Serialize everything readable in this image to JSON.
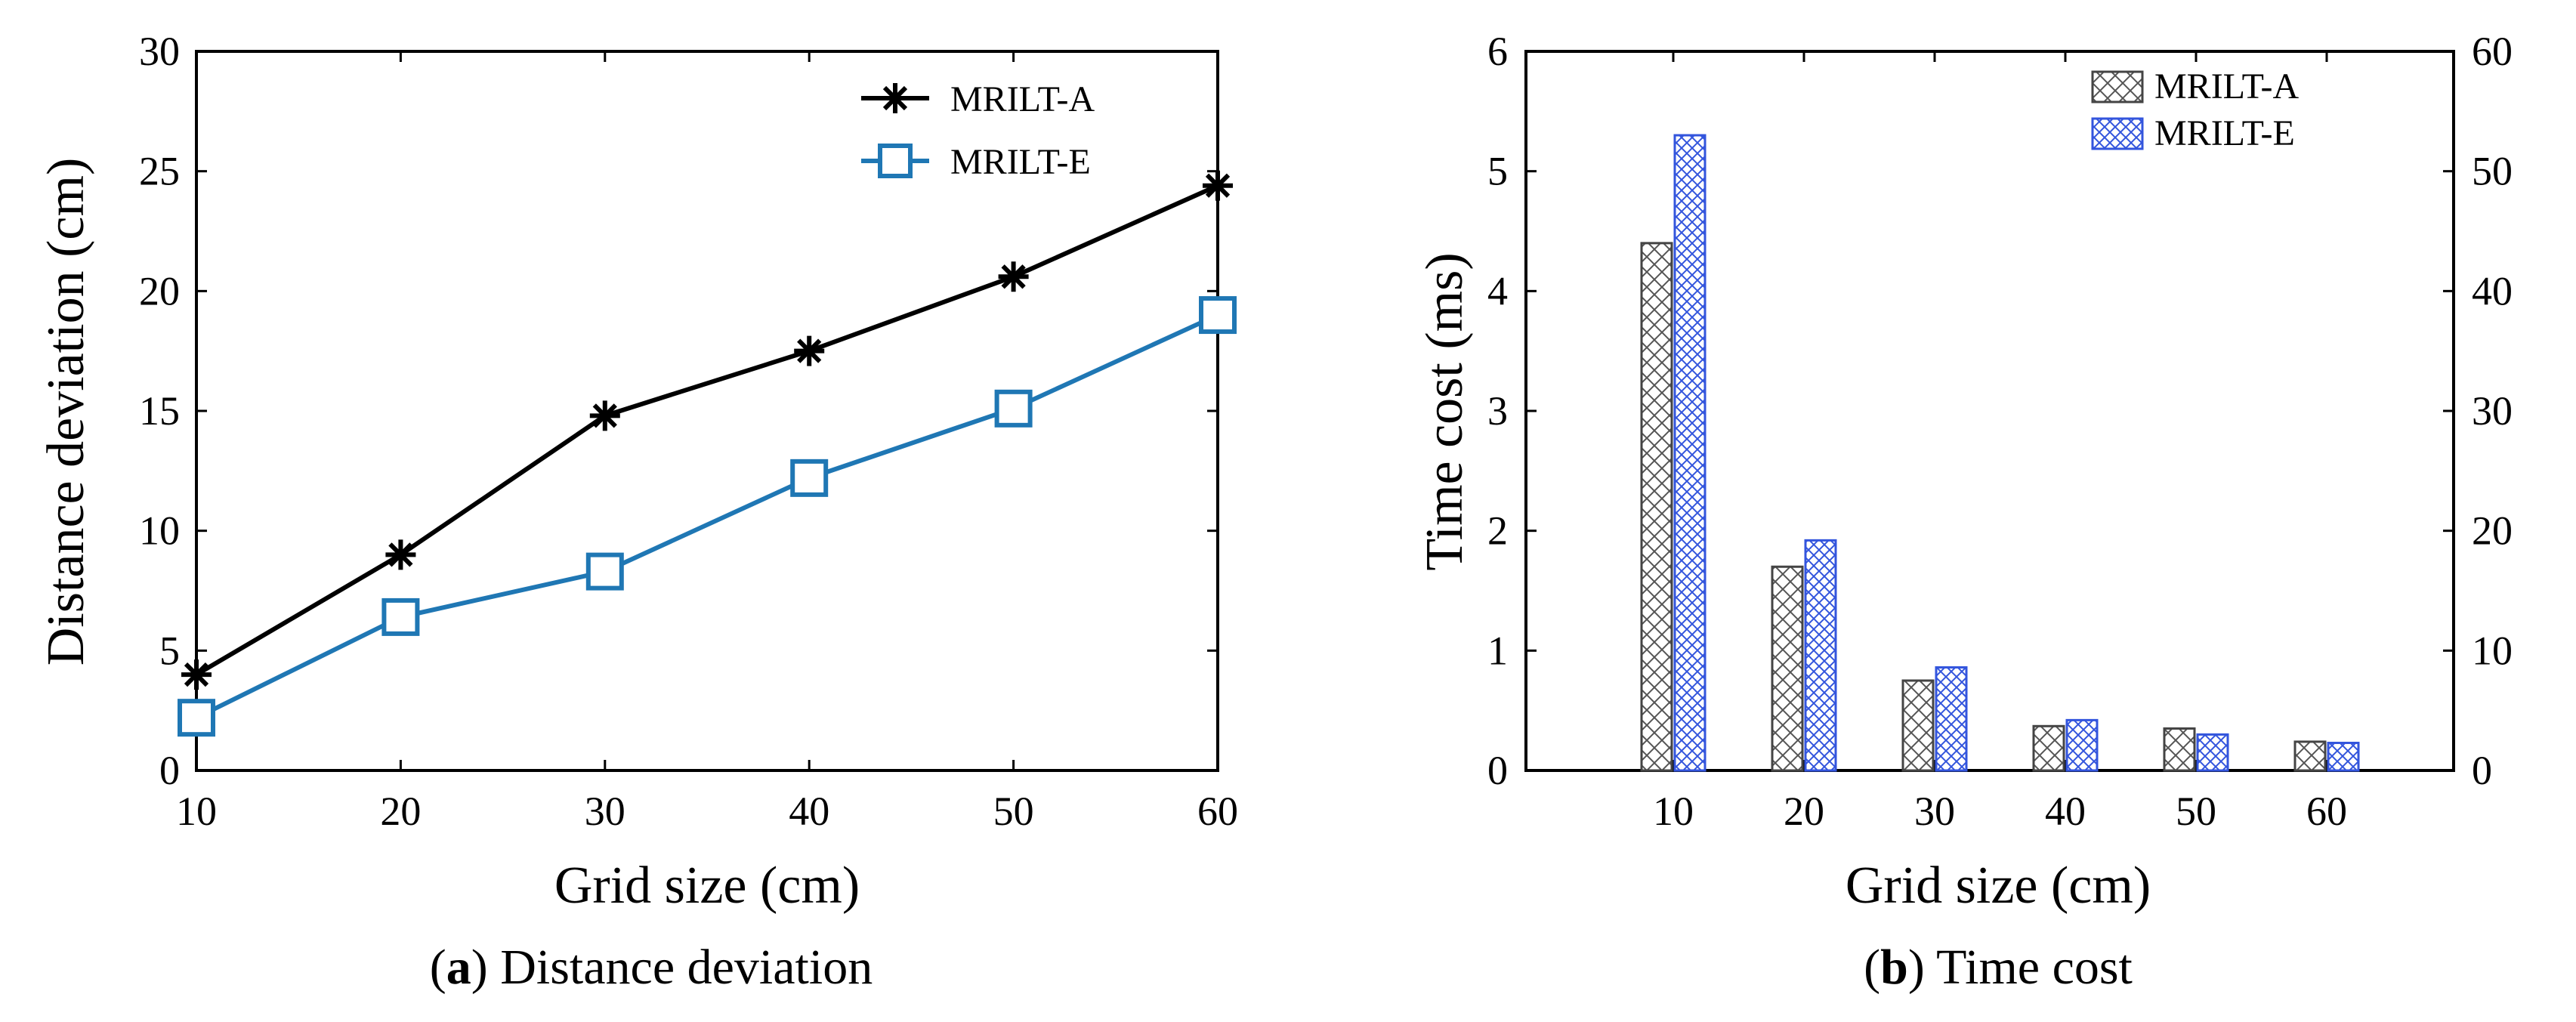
{
  "chart_data": [
    {
      "type": "line",
      "xlabel": "Grid size (cm)",
      "ylabel": "Distance deviation (cm)",
      "caption_letter": "a",
      "caption_text": "Distance deviation",
      "x": [
        10,
        20,
        30,
        40,
        50,
        60
      ],
      "xlim": [
        10,
        60
      ],
      "ylim": [
        0,
        30
      ],
      "xticks": [
        "10",
        "20",
        "30",
        "40",
        "50",
        "60"
      ],
      "yticks": [
        "0",
        "5",
        "10",
        "15",
        "20",
        "25",
        "30"
      ],
      "grid": false,
      "legend": "top-right",
      "series": [
        {
          "name": "MRILT-A",
          "marker": "asterisk",
          "color": "#000000",
          "values": [
            4.0,
            9.0,
            14.8,
            17.5,
            20.6,
            24.4
          ]
        },
        {
          "name": "MRILT-E",
          "marker": "square",
          "color": "#1f77b4",
          "values": [
            2.2,
            6.4,
            8.3,
            12.2,
            15.1,
            19.0
          ]
        }
      ]
    },
    {
      "type": "bar",
      "xlabel": "Grid size (cm)",
      "ylabel": "Time cost (ms)",
      "caption_letter": "b",
      "caption_text": "Time cost",
      "categories": [
        "10",
        "20",
        "30",
        "40",
        "50",
        "60"
      ],
      "ylim": [
        0,
        6
      ],
      "yticks": [
        "0",
        "1",
        "2",
        "3",
        "4",
        "5",
        "6"
      ],
      "y2lim": [
        0,
        60
      ],
      "y2ticks": [
        "0",
        "10",
        "20",
        "30",
        "40",
        "50",
        "60"
      ],
      "grid": false,
      "legend": "top-right",
      "series": [
        {
          "name": "MRILT-A",
          "color": "#444444",
          "pattern": "crosshatch",
          "values": [
            4.4,
            1.7,
            0.75,
            0.37,
            0.35,
            0.24
          ]
        },
        {
          "name": "MRILT-E",
          "color": "#3355dd",
          "pattern": "crosshatch",
          "values": [
            5.3,
            1.92,
            0.86,
            0.42,
            0.3,
            0.23
          ]
        }
      ]
    }
  ]
}
